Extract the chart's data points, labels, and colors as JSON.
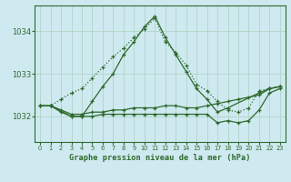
{
  "background_color": "#cfe9f0",
  "grid_color": "#b0d4c8",
  "line_color": "#2d6a2d",
  "title": "Graphe pression niveau de la mer (hPa)",
  "xlim": [
    -0.5,
    23.5
  ],
  "ylim": [
    1031.4,
    1034.6
  ],
  "yticks": [
    1032,
    1033,
    1034
  ],
  "xticks": [
    0,
    1,
    2,
    3,
    4,
    5,
    6,
    7,
    8,
    9,
    10,
    11,
    12,
    13,
    14,
    15,
    16,
    17,
    18,
    19,
    20,
    21,
    22,
    23
  ],
  "series": [
    {
      "x": [
        0,
        1,
        2,
        3,
        4,
        5,
        6,
        7,
        8,
        9,
        10,
        11,
        12,
        13,
        14,
        15,
        16,
        17,
        18,
        19,
        20,
        21,
        22,
        23
      ],
      "y": [
        1032.25,
        1032.25,
        1032.4,
        1032.55,
        1032.65,
        1032.9,
        1033.15,
        1033.4,
        1033.6,
        1033.85,
        1034.05,
        1034.3,
        1033.75,
        1033.5,
        1033.2,
        1032.75,
        1032.6,
        1032.35,
        1032.15,
        1032.1,
        1032.2,
        1032.6,
        1032.65,
        1032.7
      ],
      "style": "dotted",
      "marker": "+"
    },
    {
      "x": [
        1,
        3,
        4,
        5,
        6,
        7,
        8,
        9,
        10,
        11,
        12,
        13,
        14,
        15,
        16,
        17,
        18,
        21,
        22,
        23
      ],
      "y": [
        1032.25,
        1032.0,
        1032.0,
        1032.35,
        1032.7,
        1033.0,
        1033.45,
        1033.75,
        1034.1,
        1034.35,
        1033.85,
        1033.45,
        1033.05,
        1032.65,
        1032.4,
        1032.1,
        1032.2,
        1032.55,
        1032.65,
        1032.7
      ],
      "style": "solid",
      "marker": "+"
    },
    {
      "x": [
        0,
        1,
        2,
        3,
        4,
        5,
        6,
        7,
        8,
        9,
        10,
        11,
        12,
        13,
        14,
        15,
        16,
        17,
        18,
        19,
        20,
        21,
        22,
        23
      ],
      "y": [
        1032.25,
        1032.25,
        1032.15,
        1032.05,
        1032.05,
        1032.1,
        1032.1,
        1032.15,
        1032.15,
        1032.2,
        1032.2,
        1032.2,
        1032.25,
        1032.25,
        1032.2,
        1032.2,
        1032.25,
        1032.3,
        1032.35,
        1032.4,
        1032.45,
        1032.5,
        1032.65,
        1032.7
      ],
      "style": "solid",
      "marker": "+"
    },
    {
      "x": [
        0,
        1,
        2,
        3,
        4,
        5,
        6,
        7,
        8,
        9,
        10,
        11,
        12,
        13,
        14,
        15,
        16,
        17,
        18,
        19,
        20,
        21,
        22,
        23
      ],
      "y": [
        1032.25,
        1032.25,
        1032.1,
        1032.0,
        1032.0,
        1032.0,
        1032.05,
        1032.05,
        1032.05,
        1032.05,
        1032.05,
        1032.05,
        1032.05,
        1032.05,
        1032.05,
        1032.05,
        1032.05,
        1031.85,
        1031.9,
        1031.85,
        1031.9,
        1032.15,
        1032.55,
        1032.65
      ],
      "style": "solid",
      "marker": "+"
    }
  ]
}
